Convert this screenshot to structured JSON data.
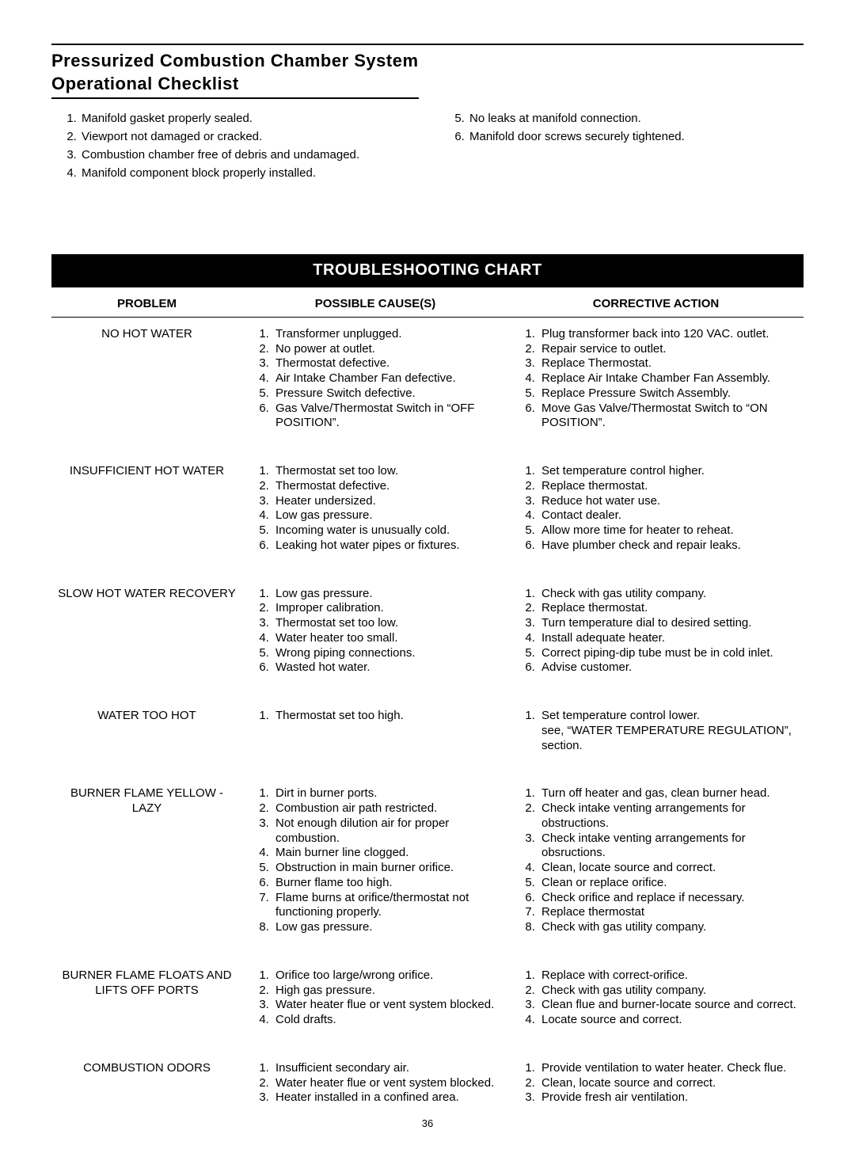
{
  "page_number": "36",
  "checklist": {
    "title_line1": "Pressurized Combustion Chamber System",
    "title_line2": "Operational Checklist",
    "items_left": [
      "Manifold gasket properly sealed.",
      "Viewport not damaged or cracked.",
      "Combustion chamber free of debris and undamaged.",
      "Manifold component block properly installed."
    ],
    "items_right": [
      "No leaks at manifold connection.",
      "Manifold door screws securely tightened."
    ],
    "right_start": 5
  },
  "chart": {
    "banner": "TROUBLESHOOTING CHART",
    "headers": {
      "problem": "PROBLEM",
      "causes": "POSSIBLE CAUSE(S)",
      "action": "CORRECTIVE ACTION"
    },
    "rows": [
      {
        "problem": "NO HOT WATER",
        "causes": [
          "Transformer unplugged.",
          "No power at outlet.",
          "Thermostat defective.",
          "Air Intake Chamber Fan defective.",
          "Pressure Switch defective.",
          "Gas Valve/Thermostat Switch in “OFF POSITION”."
        ],
        "actions": [
          "Plug transformer back into 120 VAC. outlet.",
          "Repair service to outlet.",
          "Replace Thermostat.",
          "Replace Air Intake Chamber Fan Assembly.",
          "Replace Pressure Switch Assembly.",
          "Move Gas Valve/Thermostat Switch to “ON POSITION”."
        ]
      },
      {
        "problem": "INSUFFICIENT HOT WATER",
        "causes": [
          "Thermostat set too low.",
          "Thermostat defective.",
          "Heater undersized.",
          "Low gas pressure.",
          "Incoming water is unusually cold.",
          "Leaking hot water pipes or fixtures."
        ],
        "actions": [
          "Set temperature control higher.",
          "Replace thermostat.",
          "Reduce hot water use.",
          "Contact dealer.",
          "Allow more time for heater to reheat.",
          "Have plumber check and repair leaks."
        ]
      },
      {
        "problem": "SLOW HOT WATER RECOVERY",
        "causes": [
          "Low gas pressure.",
          "Improper calibration.",
          "Thermostat set too low.",
          "Water heater too small.",
          "Wrong piping connections.",
          "Wasted hot water."
        ],
        "actions": [
          "Check with gas utility company.",
          "Replace thermostat.",
          "Turn temperature dial to desired setting.",
          "Install adequate heater.",
          "Correct piping-dip tube must be in cold inlet.",
          "Advise customer."
        ]
      },
      {
        "problem": "WATER TOO HOT",
        "causes": [
          "Thermostat set too high."
        ],
        "actions": [
          "Set temperature control lower.<br>see, “WATER TEMPERATURE REGULATION”, section."
        ]
      },
      {
        "problem": "BURNER FLAME YELLOW - LAZY",
        "causes": [
          "Dirt in burner ports.",
          "Combustion air path restricted.",
          "Not enough dilution air for proper combustion.",
          "Main burner line clogged.",
          "Obstruction in main burner orifice.",
          "Burner flame too high.",
          "Flame burns at orifice/thermostat not functioning properly.",
          "Low gas pressure."
        ],
        "actions": [
          "Turn off heater and gas, clean burner head.",
          "Check intake venting arrangements for obstructions.",
          "Check intake venting arrangements for obsructions.",
          "Clean, locate source and correct.",
          "Clean or replace orifice.",
          "Check orifice and replace if necessary.",
          "Replace thermostat",
          "Check with gas utility company."
        ]
      },
      {
        "problem": "BURNER FLAME FLOATS AND LIFTS OFF PORTS",
        "causes": [
          "Orifice too large/wrong orifice.",
          "High gas pressure.",
          "Water heater flue or vent system blocked.",
          "Cold drafts."
        ],
        "actions": [
          "Replace with correct-orifice.",
          "Check with gas utility company.",
          "Clean flue and burner-locate source and correct.",
          "Locate source and correct."
        ]
      },
      {
        "problem": "COMBUSTION ODORS",
        "causes": [
          "Insufficient secondary air.",
          "Water heater flue or vent system blocked.",
          "Heater installed in a confined area."
        ],
        "actions": [
          "Provide ventilation to water heater. Check flue.",
          "Clean, locate source and correct.",
          "Provide fresh air ventilation."
        ]
      }
    ]
  }
}
